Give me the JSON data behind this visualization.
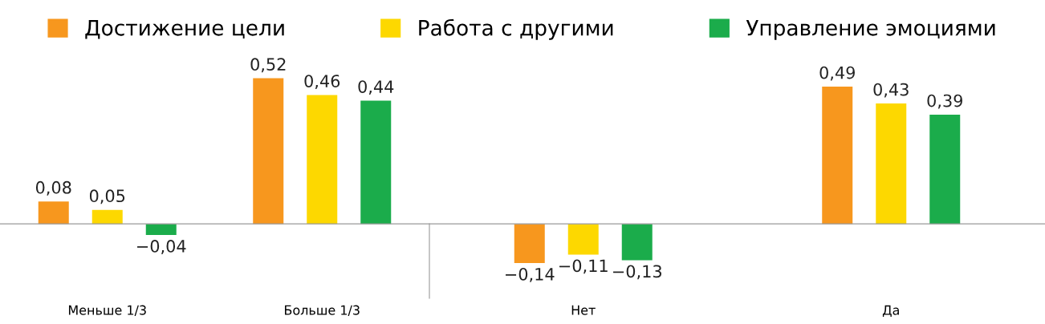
{
  "chart_data": [
    {
      "type": "bar",
      "categories": [
        "Меньше 1/3",
        "Больше 1/3"
      ],
      "legend": "top",
      "data_labels": true,
      "series": [
        {
          "name": "Достижение цели",
          "color": "#f7971e",
          "values": [
            0.08,
            0.52
          ],
          "value_labels": [
            "0,08",
            "0,52"
          ]
        },
        {
          "name": "Работа с другими",
          "color": "#fdd800",
          "values": [
            0.05,
            0.46
          ],
          "value_labels": [
            "0,05",
            "0,46"
          ]
        },
        {
          "name": "Управление эмоциями",
          "color": "#1bac4b",
          "values": [
            -0.04,
            0.44
          ],
          "value_labels": [
            "−0,04",
            "0,44"
          ]
        }
      ]
    },
    {
      "type": "bar",
      "categories": [
        "Нет",
        "Да"
      ],
      "data_labels": true,
      "series": [
        {
          "color": "#f7971e",
          "values": [
            -0.14,
            0.49
          ],
          "value_labels": [
            "−0,14",
            "0,49"
          ]
        },
        {
          "color": "#fdd800",
          "values": [
            -0.11,
            0.43
          ],
          "value_labels": [
            "−0,11",
            "0,43"
          ]
        },
        {
          "color": "#1bac4b",
          "values": [
            -0.13,
            0.39
          ],
          "value_labels": [
            "−0,13",
            "0,39"
          ]
        }
      ]
    }
  ]
}
